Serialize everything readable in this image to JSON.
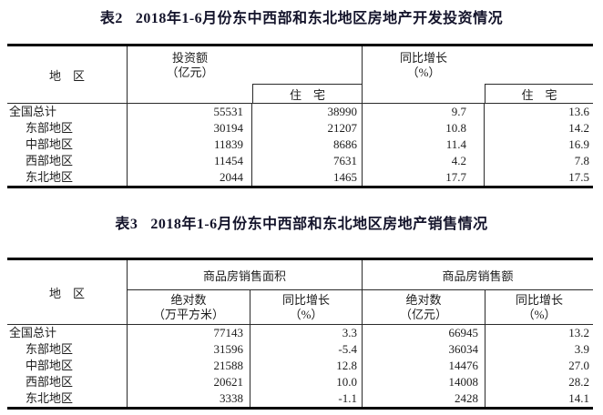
{
  "colors": {
    "background": "#ffffff",
    "text": "#1c1c1c",
    "title_text": "#14142b",
    "thick_rule": "#000000",
    "grid_line": "#2a2a2a"
  },
  "table2": {
    "title_tag": "表2",
    "title": "2018年1-6月份东中西部和东北地区房地产开发投资情况",
    "header": {
      "region": "地　区",
      "invest_line1": "投资额",
      "invest_line2": "（亿元）",
      "invest_sub": "住　宅",
      "growth_line1": "同比增长",
      "growth_line2": "（%）",
      "growth_sub": "住　宅"
    },
    "rows": [
      {
        "region": "全国总计",
        "invest": "55531",
        "invest_res": "38990",
        "growth": "9.7",
        "growth_res": "13.6"
      },
      {
        "region": "东部地区",
        "invest": "30194",
        "invest_res": "21207",
        "growth": "10.8",
        "growth_res": "14.2"
      },
      {
        "region": "中部地区",
        "invest": "11839",
        "invest_res": "8686",
        "growth": "11.4",
        "growth_res": "16.9"
      },
      {
        "region": "西部地区",
        "invest": "11454",
        "invest_res": "7631",
        "growth": "4.2",
        "growth_res": "7.8"
      },
      {
        "region": "东北地区",
        "invest": "2044",
        "invest_res": "1465",
        "growth": "17.7",
        "growth_res": "17.5"
      }
    ]
  },
  "table3": {
    "title_tag": "表3",
    "title": "2018年1-6月份东中西部和东北地区房地产销售情况",
    "header": {
      "region": "地　区",
      "area_group": "商品房销售面积",
      "amount_group": "商品房销售额",
      "area_abs_line1": "绝对数",
      "area_abs_line2": "（万平方米）",
      "area_growth_line1": "同比增长",
      "area_growth_line2": "（%）",
      "amount_abs_line1": "绝对数",
      "amount_abs_line2": "（亿元）",
      "amount_growth_line1": "同比增长",
      "amount_growth_line2": "（%）"
    },
    "rows": [
      {
        "region": "全国总计",
        "area": "77143",
        "area_growth": "3.3",
        "amount": "66945",
        "amount_growth": "13.2"
      },
      {
        "region": "东部地区",
        "area": "31596",
        "area_growth": "-5.4",
        "amount": "36034",
        "amount_growth": "3.9"
      },
      {
        "region": "中部地区",
        "area": "21588",
        "area_growth": "12.8",
        "amount": "14476",
        "amount_growth": "27.0"
      },
      {
        "region": "西部地区",
        "area": "20621",
        "area_growth": "10.0",
        "amount": "14008",
        "amount_growth": "28.2"
      },
      {
        "region": "东北地区",
        "area": "3338",
        "area_growth": "-1.1",
        "amount": "2428",
        "amount_growth": "14.1"
      }
    ]
  }
}
